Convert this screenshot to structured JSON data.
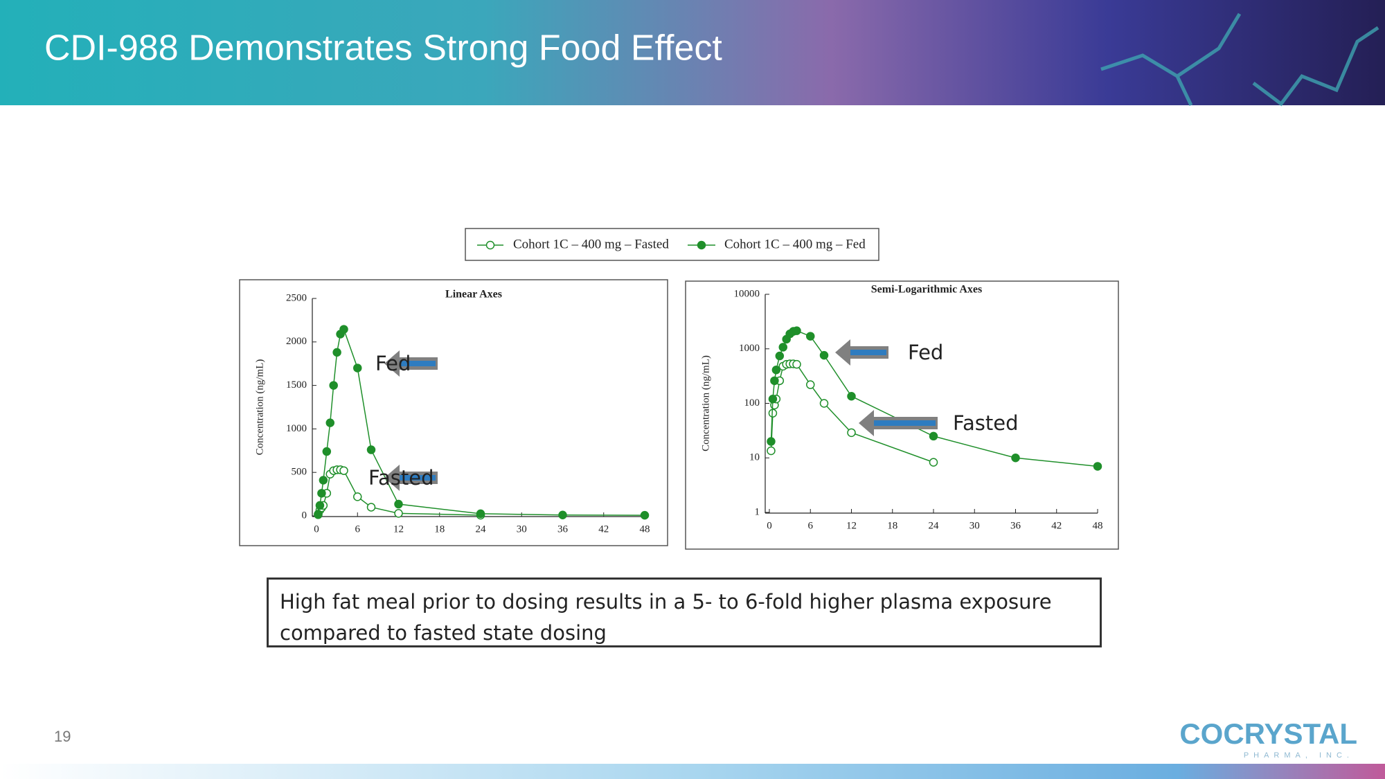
{
  "header": {
    "title": "CDI-988 Demonstrates Strong Food Effect"
  },
  "chart_data": [
    {
      "type": "line",
      "title": "Linear Axes",
      "y_label": "Concentration (ng/mL)",
      "x": [
        0.25,
        0.5,
        0.75,
        1,
        1.5,
        2,
        2.5,
        3,
        3.5,
        4,
        6,
        8,
        12,
        24,
        36,
        48
      ],
      "series": [
        {
          "name": "Cohort 1C – 400 mg – Fasted",
          "color": "#1f8f2a",
          "marker": "open",
          "values": [
            13.5,
            66,
            93,
            120,
            260,
            480,
            520,
            530,
            530,
            520,
            220,
            100,
            29,
            8.3,
            null,
            null
          ]
        },
        {
          "name": "Cohort 1C – 400 mg – Fed",
          "color": "#1f8f2a",
          "marker": "filled",
          "values": [
            20,
            120,
            260,
            410,
            740,
            1070,
            1500,
            1880,
            2090,
            2145,
            1700,
            760,
            135,
            25,
            10,
            7
          ]
        }
      ],
      "xlim": [
        0,
        48
      ],
      "xticks": [
        0,
        6,
        12,
        18,
        24,
        30,
        36,
        42,
        48
      ],
      "ylim": [
        0,
        2500
      ],
      "yticks": [
        0,
        500,
        1000,
        1500,
        2000,
        2500
      ],
      "log_y": false,
      "annotations": [
        "Fed",
        "Fasted"
      ]
    },
    {
      "type": "line",
      "title": "Semi-Logarithmic Axes",
      "y_label": "Concentration (ng/mL)",
      "x": [
        0.25,
        0.5,
        0.75,
        1,
        1.5,
        2,
        2.5,
        3,
        3.5,
        4,
        6,
        8,
        12,
        24,
        36,
        48
      ],
      "series": [
        {
          "color": "#1f8f2a",
          "marker": "open",
          "values": [
            13.5,
            66,
            93,
            120,
            260,
            480,
            520,
            530,
            530,
            520,
            220,
            100,
            29,
            8.3,
            null,
            null
          ]
        },
        {
          "color": "#1f8f2a",
          "marker": "filled",
          "values": [
            20,
            120,
            260,
            410,
            740,
            1070,
            1500,
            1880,
            2090,
            2145,
            1700,
            760,
            135,
            25,
            10,
            7
          ]
        }
      ],
      "xlim": [
        0,
        48
      ],
      "xticks": [
        0,
        6,
        12,
        18,
        24,
        30,
        36,
        42,
        48
      ],
      "ylim": [
        1,
        10000
      ],
      "yticks": [
        1,
        10,
        100,
        1000,
        10000
      ],
      "log_y": true,
      "annotations": [
        "Fed",
        "Fasted"
      ]
    }
  ],
  "note": "High fat meal prior to dosing results in a 5- to 6-fold higher plasma exposure compared to fasted state dosing",
  "page_number": "19",
  "logo": {
    "name": "COCRYSTAL",
    "tagline": "PHARMA, INC."
  }
}
